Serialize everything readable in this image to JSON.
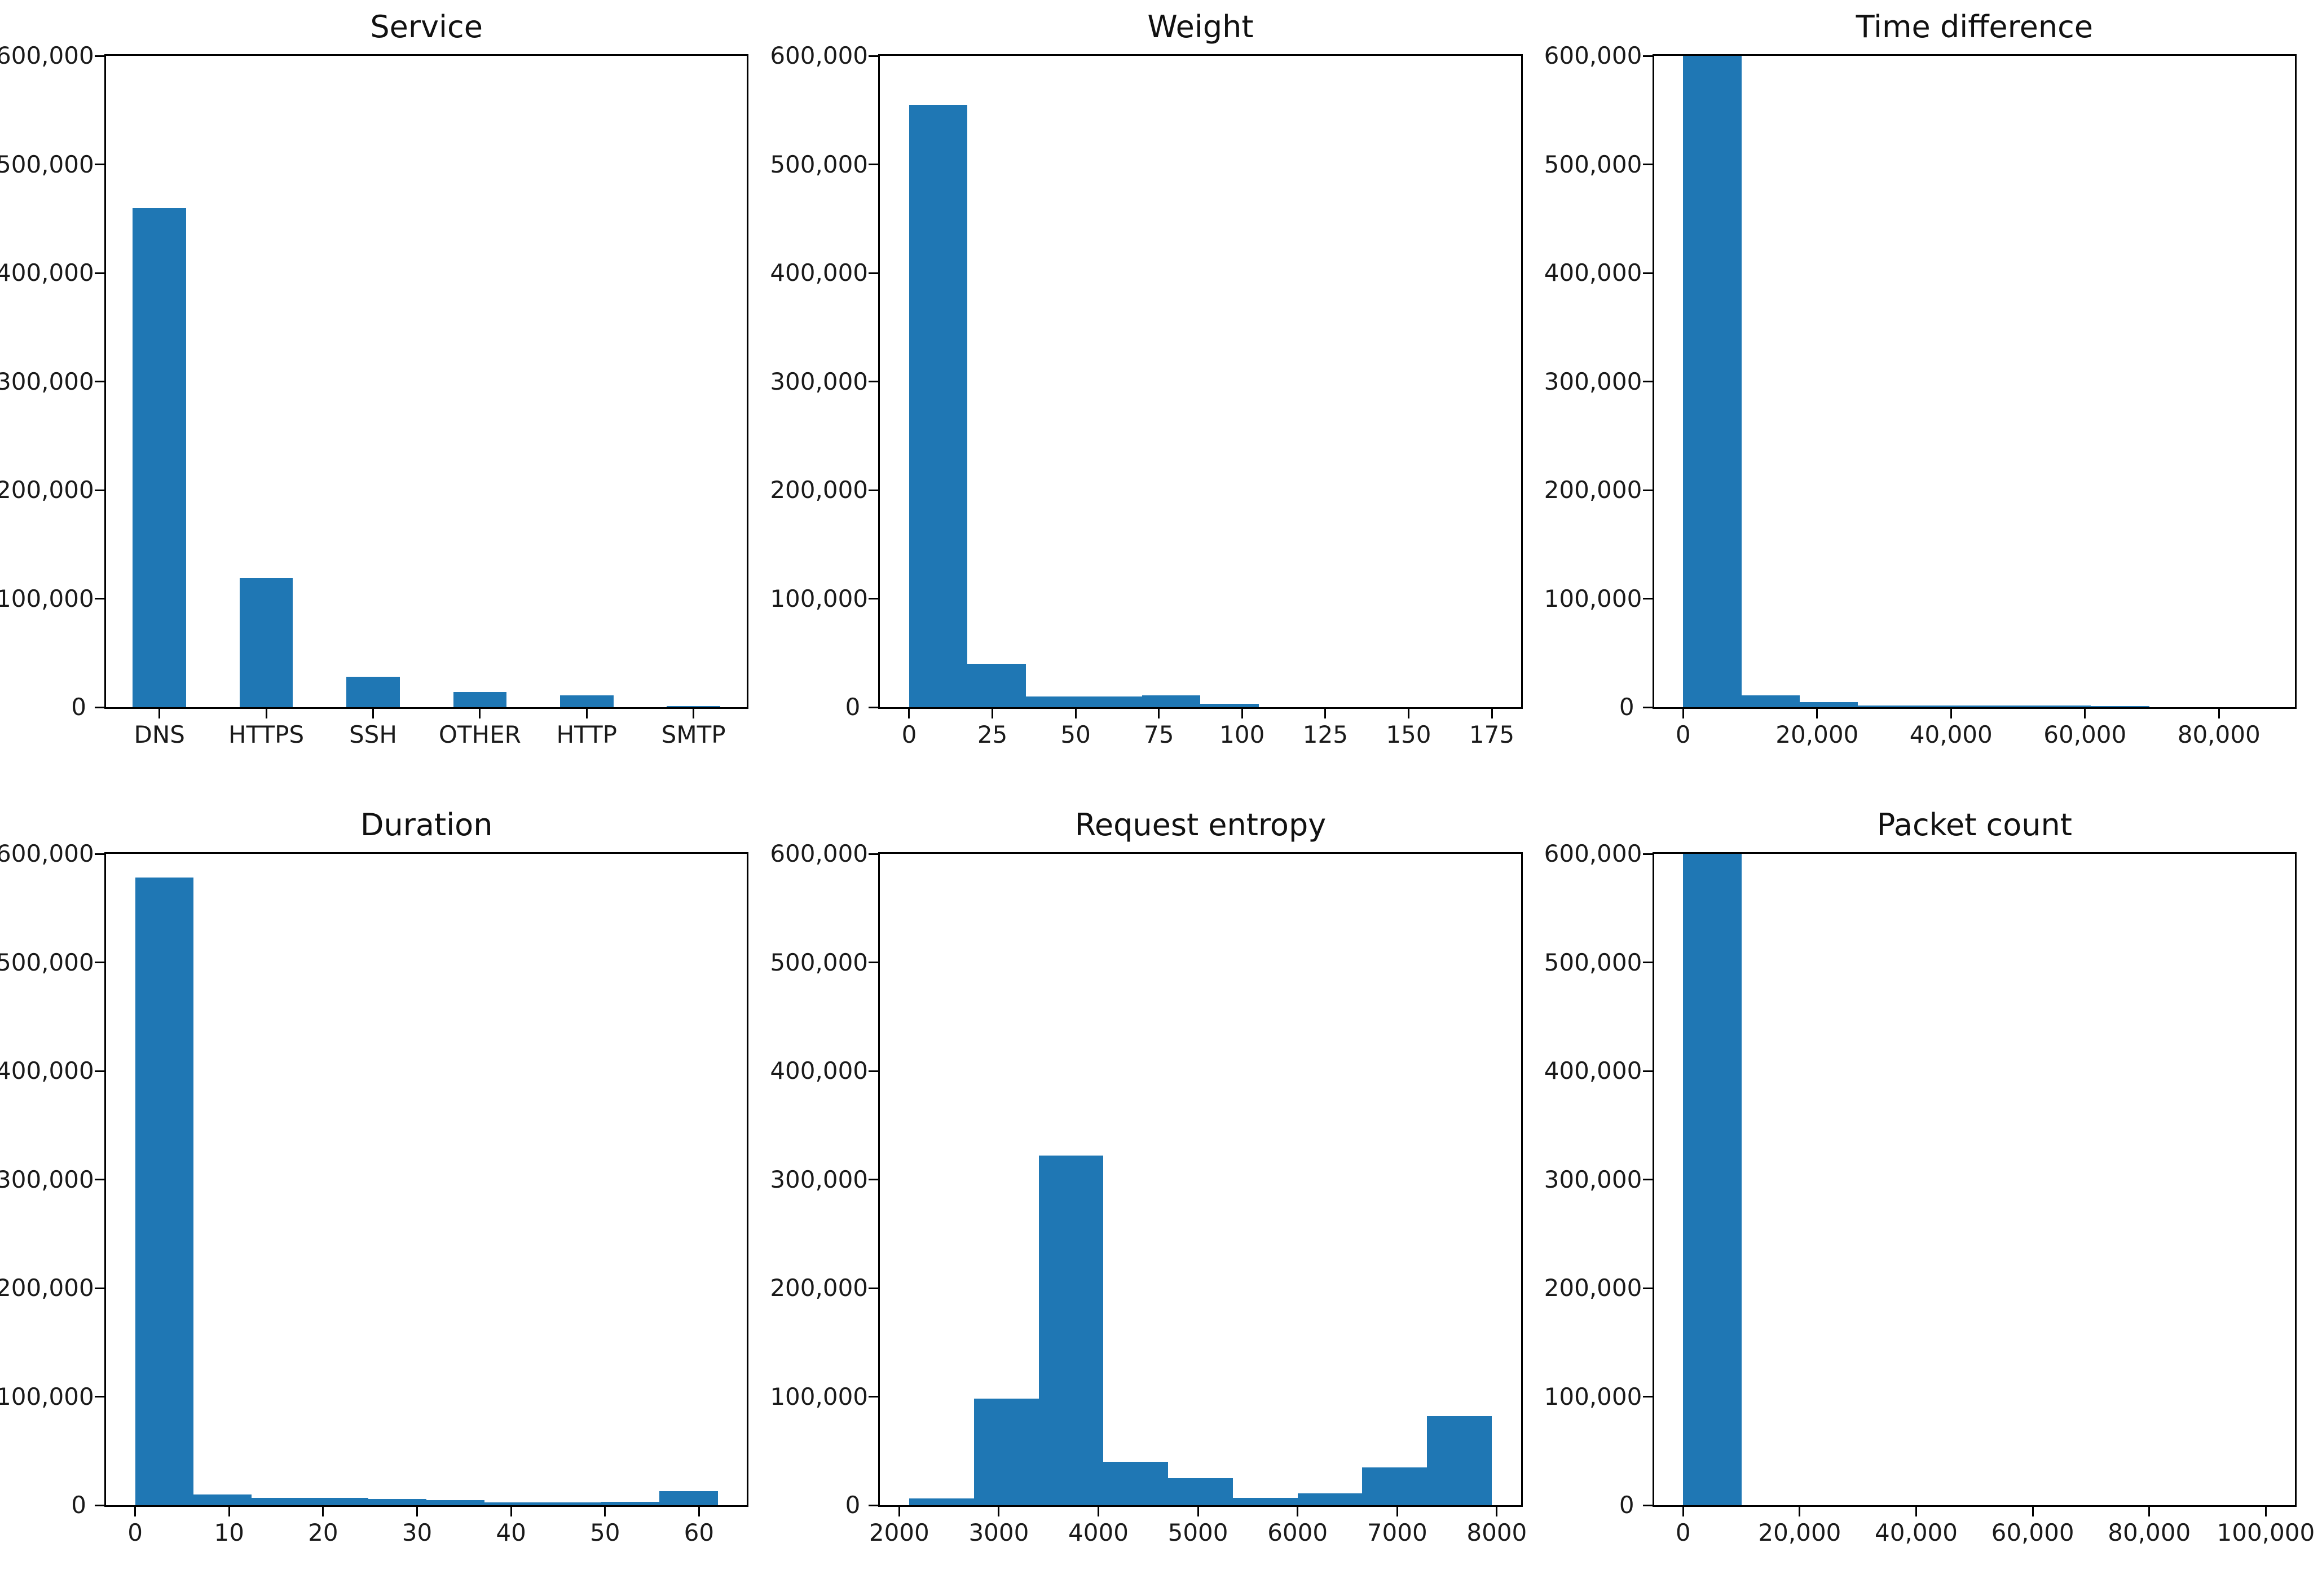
{
  "figure": {
    "bar_color": "#1f77b4",
    "axis_color": "#000000",
    "text_color": "#1a1a1a",
    "background": "#ffffff"
  },
  "y_axis": {
    "lim": [
      0,
      600000
    ],
    "ticks": [
      {
        "value": 0,
        "label": "0"
      },
      {
        "value": 100000,
        "label": "100,000"
      },
      {
        "value": 200000,
        "label": "200,000"
      },
      {
        "value": 300000,
        "label": "300,000"
      },
      {
        "value": 400000,
        "label": "400,000"
      },
      {
        "value": 500000,
        "label": "500,000"
      },
      {
        "value": 600000,
        "label": "600,000"
      }
    ]
  },
  "chart_data": "see charts array",
  "charts": [
    {
      "title": "Service",
      "type": "bar",
      "categories": [
        "DNS",
        "HTTPS",
        "SSH",
        "OTHER",
        "HTTP",
        "SMTP"
      ],
      "values": [
        460000,
        119000,
        28000,
        14000,
        11000,
        1000
      ],
      "clipped_at_top": false
    },
    {
      "title": "Weight",
      "type": "histogram",
      "bin_start": 0,
      "bin_width": 17.5,
      "values": [
        555000,
        40000,
        10000,
        10000,
        11000,
        3000,
        0,
        0,
        0,
        0
      ],
      "xlim": [
        -8.75,
        183.75
      ],
      "xticks": [
        {
          "value": 0,
          "label": "0"
        },
        {
          "value": 25,
          "label": "25"
        },
        {
          "value": 50,
          "label": "50"
        },
        {
          "value": 75,
          "label": "75"
        },
        {
          "value": 100,
          "label": "100"
        },
        {
          "value": 125,
          "label": "125"
        },
        {
          "value": 150,
          "label": "150"
        },
        {
          "value": 175,
          "label": "175"
        }
      ],
      "clipped_at_top": false
    },
    {
      "title": "Time difference",
      "type": "histogram",
      "bin_start": 0,
      "bin_width": 8700,
      "values": [
        600000,
        11000,
        4500,
        1500,
        1500,
        1500,
        1500,
        1200,
        0,
        0
      ],
      "xlim": [
        -4350,
        91350
      ],
      "xticks": [
        {
          "value": 0,
          "label": "0"
        },
        {
          "value": 20000,
          "label": "20,000"
        },
        {
          "value": 40000,
          "label": "40,000"
        },
        {
          "value": 60000,
          "label": "60,000"
        },
        {
          "value": 80000,
          "label": "80,000"
        }
      ],
      "clipped_at_top": true
    },
    {
      "title": "Duration",
      "type": "histogram",
      "bin_start": 0,
      "bin_width": 6.2,
      "values": [
        578000,
        10000,
        7000,
        7000,
        5500,
        4500,
        2500,
        2500,
        3000,
        13000
      ],
      "xlim": [
        -3.1,
        65.1
      ],
      "xticks": [
        {
          "value": 0,
          "label": "0"
        },
        {
          "value": 10,
          "label": "10"
        },
        {
          "value": 20,
          "label": "20"
        },
        {
          "value": 30,
          "label": "30"
        },
        {
          "value": 40,
          "label": "40"
        },
        {
          "value": 50,
          "label": "50"
        },
        {
          "value": 60,
          "label": "60"
        }
      ],
      "clipped_at_top": false
    },
    {
      "title": "Request entropy",
      "type": "histogram",
      "bin_start": 2100,
      "bin_width": 650,
      "values": [
        6500,
        98000,
        322000,
        40000,
        25000,
        7000,
        11000,
        35000,
        82000
      ],
      "xlim": [
        1807.5,
        8242.5
      ],
      "xticks": [
        {
          "value": 2000,
          "label": "2000"
        },
        {
          "value": 3000,
          "label": "3000"
        },
        {
          "value": 4000,
          "label": "4000"
        },
        {
          "value": 5000,
          "label": "5000"
        },
        {
          "value": 6000,
          "label": "6000"
        },
        {
          "value": 7000,
          "label": "7000"
        },
        {
          "value": 8000,
          "label": "8000"
        }
      ],
      "clipped_at_top": false
    },
    {
      "title": "Packet count",
      "type": "histogram",
      "bin_start": 0,
      "bin_width": 10000,
      "values": [
        600000,
        0,
        0,
        0,
        0,
        0,
        0,
        0,
        0,
        0
      ],
      "xlim": [
        -5000,
        105000
      ],
      "xticks": [
        {
          "value": 0,
          "label": "0"
        },
        {
          "value": 20000,
          "label": "20,000"
        },
        {
          "value": 40000,
          "label": "40,000"
        },
        {
          "value": 60000,
          "label": "60,000"
        },
        {
          "value": 80000,
          "label": "80,000"
        },
        {
          "value": 100000,
          "label": "100,000"
        }
      ],
      "clipped_at_top": true
    }
  ]
}
